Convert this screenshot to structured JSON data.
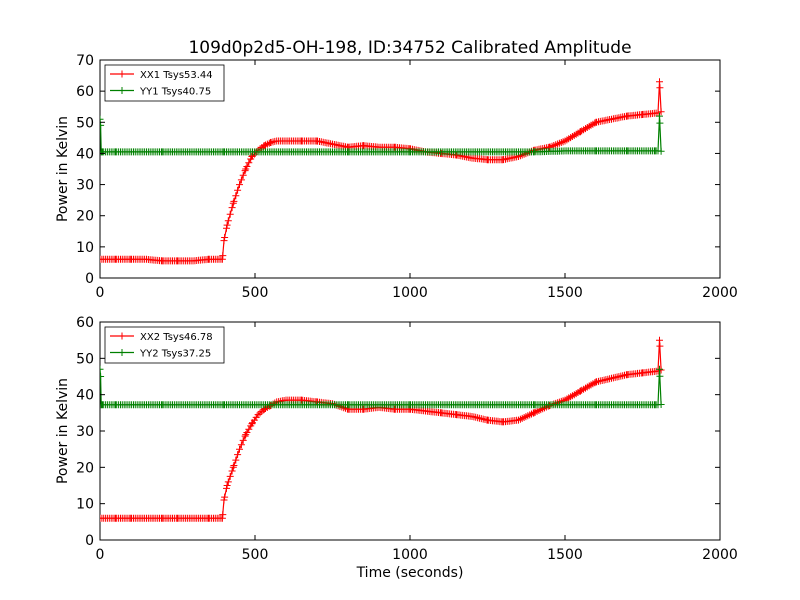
{
  "title": "109d0p2d5-OH-198, ID:34752 Calibrated Amplitude",
  "colors": {
    "red": "#ff0000",
    "green": "#008000"
  },
  "chart_data": [
    {
      "type": "line",
      "title": "109d0p2d5-OH-198, ID:34752 Calibrated Amplitude",
      "xlabel": "",
      "ylabel": "Power in Kelvin",
      "xlim": [
        0,
        2000
      ],
      "ylim": [
        0,
        70
      ],
      "xticks": [
        0,
        500,
        1000,
        1500,
        2000
      ],
      "yticks": [
        0,
        10,
        20,
        30,
        40,
        50,
        60,
        70
      ],
      "grid": false,
      "legend_position": "top-left",
      "series": [
        {
          "name": "XX1 Tsys53.44",
          "color": "#ff0000",
          "x": [
            0,
            50,
            100,
            150,
            200,
            250,
            300,
            350,
            395,
            400,
            410,
            430,
            450,
            470,
            490,
            510,
            530,
            550,
            570,
            600,
            650,
            700,
            750,
            800,
            850,
            900,
            950,
            1000,
            1050,
            1100,
            1150,
            1200,
            1250,
            1300,
            1350,
            1400,
            1450,
            1500,
            1550,
            1600,
            1650,
            1700,
            1750,
            1800,
            1805,
            1810
          ],
          "y": [
            6,
            6,
            6,
            6,
            5.5,
            5.5,
            5.5,
            6,
            6,
            12,
            17,
            24,
            30,
            35,
            39,
            41,
            42.5,
            43.5,
            44,
            44,
            44,
            44,
            43,
            42,
            42.5,
            42,
            42,
            41.5,
            40.5,
            40,
            39.5,
            38.5,
            38,
            38,
            39,
            41,
            42,
            44,
            47,
            50,
            51,
            52,
            52.5,
            53,
            63,
            53.4
          ]
        },
        {
          "name": "YY1 Tsys40.75",
          "color": "#008000",
          "x": [
            0,
            2,
            4,
            6,
            8,
            50,
            200,
            400,
            600,
            800,
            1000,
            1200,
            1400,
            1500,
            1600,
            1700,
            1790,
            1800,
            1805,
            1810
          ],
          "y": [
            51,
            49,
            40.5,
            40.5,
            40.5,
            40.5,
            40.5,
            40.5,
            40.5,
            40.5,
            40.5,
            40.5,
            40.5,
            40.8,
            40.8,
            40.8,
            40.8,
            40.8,
            52,
            40.7
          ]
        }
      ]
    },
    {
      "type": "line",
      "title": "",
      "xlabel": "Time (seconds)",
      "ylabel": "Power in Kelvin",
      "xlim": [
        0,
        2000
      ],
      "ylim": [
        0,
        60
      ],
      "xticks": [
        0,
        500,
        1000,
        1500,
        2000
      ],
      "yticks": [
        0,
        10,
        20,
        30,
        40,
        50,
        60
      ],
      "grid": false,
      "legend_position": "top-left",
      "series": [
        {
          "name": "XX2 Tsys46.78",
          "color": "#ff0000",
          "x": [
            0,
            50,
            100,
            150,
            200,
            250,
            300,
            350,
            395,
            400,
            410,
            430,
            450,
            470,
            490,
            510,
            530,
            550,
            570,
            600,
            650,
            700,
            750,
            800,
            850,
            900,
            950,
            1000,
            1050,
            1100,
            1150,
            1200,
            1250,
            1300,
            1350,
            1400,
            1450,
            1500,
            1550,
            1600,
            1650,
            1700,
            1750,
            1800,
            1805,
            1810
          ],
          "y": [
            6,
            6,
            6,
            6,
            6,
            6,
            6,
            6,
            6,
            11,
            15,
            20,
            25,
            29,
            32,
            34.5,
            36,
            37,
            38,
            38.5,
            38.5,
            38,
            37.5,
            36,
            36,
            36.5,
            36,
            36,
            35.5,
            35,
            34.5,
            34,
            33,
            32.5,
            33,
            35,
            37,
            38.5,
            41,
            43.5,
            44.5,
            45.5,
            46,
            46.5,
            55,
            46.8
          ]
        },
        {
          "name": "YY2 Tsys37.25",
          "color": "#008000",
          "x": [
            0,
            2,
            4,
            6,
            8,
            50,
            200,
            400,
            600,
            800,
            1000,
            1200,
            1400,
            1600,
            1790,
            1800,
            1805,
            1810
          ],
          "y": [
            47,
            45,
            37.2,
            37.2,
            37.2,
            37.2,
            37.2,
            37.2,
            37.2,
            37.2,
            37.2,
            37.2,
            37.2,
            37.2,
            37.2,
            37.2,
            47,
            37.3
          ]
        }
      ]
    }
  ]
}
